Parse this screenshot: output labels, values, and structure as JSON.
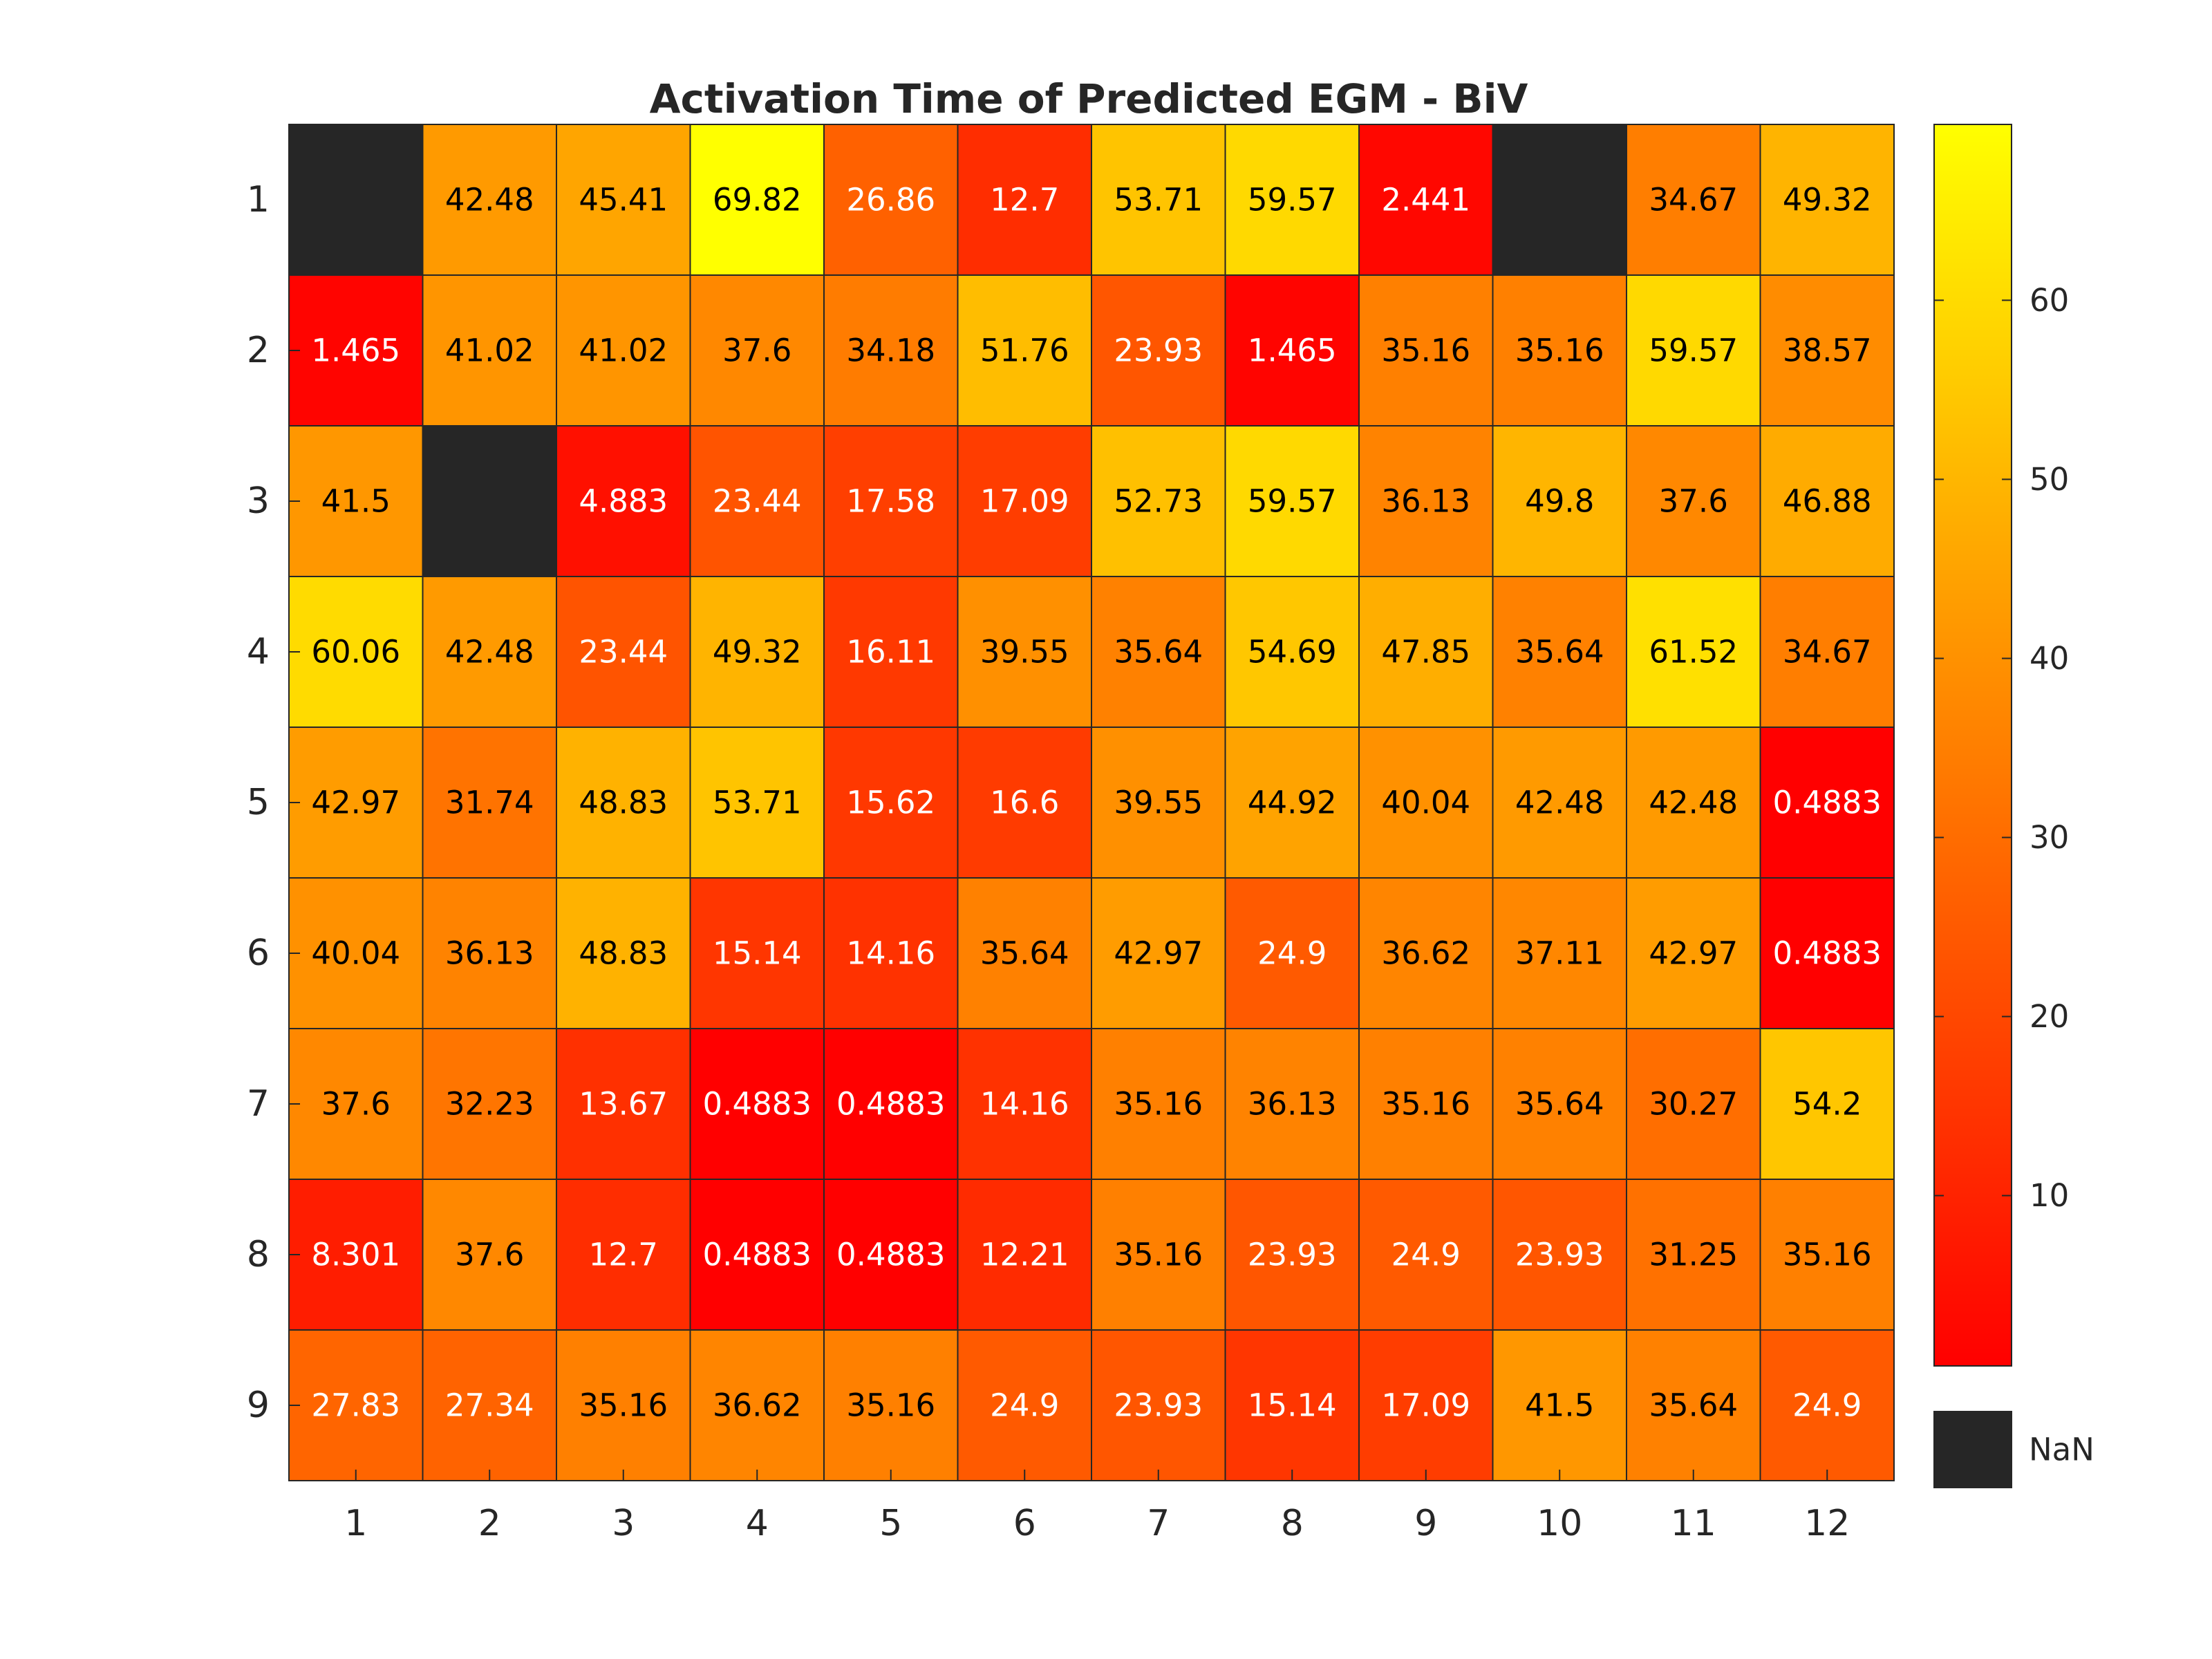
{
  "chart_data": {
    "type": "heatmap",
    "title": "Activation Time of Predicted EGM - BiV",
    "xlabel": "",
    "ylabel": "",
    "x_categories": [
      "1",
      "2",
      "3",
      "4",
      "5",
      "6",
      "7",
      "8",
      "9",
      "10",
      "11",
      "12"
    ],
    "y_categories": [
      "1",
      "2",
      "3",
      "4",
      "5",
      "6",
      "7",
      "8",
      "9"
    ],
    "cell_labels": [
      [
        "",
        "42.48",
        "45.41",
        "69.82",
        "26.86",
        "12.7",
        "53.71",
        "59.57",
        "2.441",
        "",
        "34.67",
        "49.32"
      ],
      [
        "1.465",
        "41.02",
        "41.02",
        "37.6",
        "34.18",
        "51.76",
        "23.93",
        "1.465",
        "35.16",
        "35.16",
        "59.57",
        "38.57"
      ],
      [
        "41.5",
        "",
        "4.883",
        "23.44",
        "17.58",
        "17.09",
        "52.73",
        "59.57",
        "36.13",
        "49.8",
        "37.6",
        "46.88"
      ],
      [
        "60.06",
        "42.48",
        "23.44",
        "49.32",
        "16.11",
        "39.55",
        "35.64",
        "54.69",
        "47.85",
        "35.64",
        "61.52",
        "34.67"
      ],
      [
        "42.97",
        "31.74",
        "48.83",
        "53.71",
        "15.62",
        "16.6",
        "39.55",
        "44.92",
        "40.04",
        "42.48",
        "42.48",
        "0.4883"
      ],
      [
        "40.04",
        "36.13",
        "48.83",
        "15.14",
        "14.16",
        "35.64",
        "42.97",
        "24.9",
        "36.62",
        "37.11",
        "42.97",
        "0.4883"
      ],
      [
        "37.6",
        "32.23",
        "13.67",
        "0.4883",
        "0.4883",
        "14.16",
        "35.16",
        "36.13",
        "35.16",
        "35.64",
        "30.27",
        "54.2"
      ],
      [
        "8.301",
        "37.6",
        "12.7",
        "0.4883",
        "0.4883",
        "12.21",
        "35.16",
        "23.93",
        "24.9",
        "23.93",
        "31.25",
        "35.16"
      ],
      [
        "27.83",
        "27.34",
        "35.16",
        "36.62",
        "35.16",
        "24.9",
        "23.93",
        "15.14",
        "17.09",
        "41.5",
        "35.64",
        "24.9"
      ]
    ],
    "values": [
      [
        null,
        42.48,
        45.41,
        69.82,
        26.86,
        12.7,
        53.71,
        59.57,
        2.441,
        null,
        34.67,
        49.32
      ],
      [
        1.465,
        41.02,
        41.02,
        37.6,
        34.18,
        51.76,
        23.93,
        1.465,
        35.16,
        35.16,
        59.57,
        38.57
      ],
      [
        41.5,
        null,
        4.883,
        23.44,
        17.58,
        17.09,
        52.73,
        59.57,
        36.13,
        49.8,
        37.6,
        46.88
      ],
      [
        60.06,
        42.48,
        23.44,
        49.32,
        16.11,
        39.55,
        35.64,
        54.69,
        47.85,
        35.64,
        61.52,
        34.67
      ],
      [
        42.97,
        31.74,
        48.83,
        53.71,
        15.62,
        16.6,
        39.55,
        44.92,
        40.04,
        42.48,
        42.48,
        0.4883
      ],
      [
        40.04,
        36.13,
        48.83,
        15.14,
        14.16,
        35.64,
        42.97,
        24.9,
        36.62,
        37.11,
        42.97,
        0.4883
      ],
      [
        37.6,
        32.23,
        13.67,
        0.4883,
        0.4883,
        14.16,
        35.16,
        36.13,
        35.16,
        35.64,
        30.27,
        54.2
      ],
      [
        8.301,
        37.6,
        12.7,
        0.4883,
        0.4883,
        12.21,
        35.16,
        23.93,
        24.9,
        23.93,
        31.25,
        35.16
      ],
      [
        27.83,
        27.34,
        35.16,
        36.62,
        35.16,
        24.9,
        23.93,
        15.14,
        17.09,
        41.5,
        35.64,
        24.9
      ]
    ],
    "colorbar": {
      "colormap": "autumn",
      "range": [
        0.4883,
        69.82
      ],
      "ticks": [
        10,
        20,
        30,
        40,
        50,
        60
      ],
      "tick_labels": [
        "10",
        "20",
        "30",
        "40",
        "50",
        "60"
      ],
      "low_color": "#ff0000",
      "high_color": "#ffff00"
    },
    "missing": {
      "label": "NaN",
      "color": "#262626"
    },
    "grid_line_color": "#262626"
  }
}
